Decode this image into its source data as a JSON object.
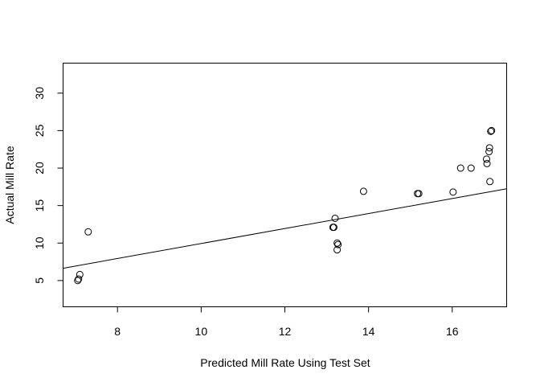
{
  "chart_data": {
    "type": "scatter",
    "title": "",
    "xlabel": "Predicted Mill Rate Using Test Set",
    "ylabel": "Actual Mill Rate",
    "xlim": [
      6.7,
      17.3
    ],
    "ylim": [
      1.5,
      34
    ],
    "x_ticks": [
      8,
      10,
      12,
      14,
      16
    ],
    "y_ticks": [
      5,
      10,
      15,
      20,
      25,
      30
    ],
    "grid": false,
    "legend": "none",
    "points": [
      {
        "x": 7.05,
        "y": 5.0
      },
      {
        "x": 7.07,
        "y": 5.2
      },
      {
        "x": 7.1,
        "y": 5.8
      },
      {
        "x": 7.3,
        "y": 11.5
      },
      {
        "x": 13.15,
        "y": 12.1
      },
      {
        "x": 13.17,
        "y": 12.1
      },
      {
        "x": 13.2,
        "y": 13.3
      },
      {
        "x": 13.25,
        "y": 10.0
      },
      {
        "x": 13.27,
        "y": 9.8
      },
      {
        "x": 13.25,
        "y": 9.1
      },
      {
        "x": 13.88,
        "y": 16.9
      },
      {
        "x": 15.17,
        "y": 16.6
      },
      {
        "x": 15.2,
        "y": 16.6
      },
      {
        "x": 16.02,
        "y": 16.8
      },
      {
        "x": 16.2,
        "y": 20.0
      },
      {
        "x": 16.45,
        "y": 20.0
      },
      {
        "x": 16.82,
        "y": 21.2
      },
      {
        "x": 16.83,
        "y": 20.6
      },
      {
        "x": 16.88,
        "y": 22.2
      },
      {
        "x": 16.89,
        "y": 22.7
      },
      {
        "x": 16.9,
        "y": 18.2
      },
      {
        "x": 16.92,
        "y": 24.9
      },
      {
        "x": 16.94,
        "y": 25.0
      }
    ],
    "fit_line": {
      "intercept": -0.0625,
      "slope": 1.0
    }
  }
}
